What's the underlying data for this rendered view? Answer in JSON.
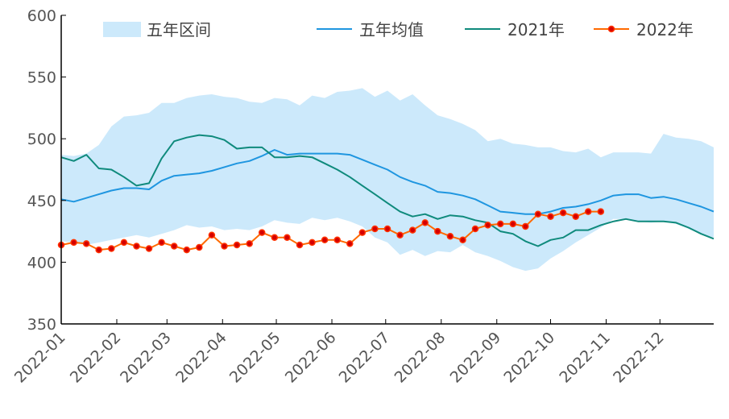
{
  "chart_data": {
    "type": "line",
    "title": "",
    "xlabel": "",
    "ylabel": "",
    "ylim": [
      350,
      600
    ],
    "y_ticks": [
      350,
      400,
      450,
      500,
      550,
      600
    ],
    "x_domain": [
      "2022-01-01",
      "2022-12-31"
    ],
    "x_ticks": [
      "2022-01",
      "2022-02",
      "2022-03",
      "2022-04",
      "2022-05",
      "2022-06",
      "2022-07",
      "2022-08",
      "2022-09",
      "2022-10",
      "2022-11",
      "2022-12"
    ],
    "grid": false,
    "legend": {
      "placement": "top"
    },
    "colors": {
      "band": "#cce9fb",
      "avg": "#1f96e0",
      "y2021": "#0f8a7c",
      "y2022_line": "#ff6a00",
      "y2022_marker_edge": "#ff3300",
      "y2022_marker_fill": "#d40000",
      "axis": "#000000"
    },
    "band": {
      "name": "五年区间",
      "dates": [
        "2022-01-01",
        "2022-01-08",
        "2022-01-15",
        "2022-01-22",
        "2022-01-29",
        "2022-02-05",
        "2022-02-12",
        "2022-02-19",
        "2022-02-26",
        "2022-03-05",
        "2022-03-12",
        "2022-03-19",
        "2022-03-26",
        "2022-04-02",
        "2022-04-09",
        "2022-04-16",
        "2022-04-23",
        "2022-04-30",
        "2022-05-07",
        "2022-05-14",
        "2022-05-21",
        "2022-05-28",
        "2022-06-04",
        "2022-06-11",
        "2022-06-18",
        "2022-06-25",
        "2022-07-02",
        "2022-07-09",
        "2022-07-16",
        "2022-07-23",
        "2022-07-30",
        "2022-08-06",
        "2022-08-13",
        "2022-08-20",
        "2022-08-27",
        "2022-09-03",
        "2022-09-10",
        "2022-09-17",
        "2022-09-24",
        "2022-10-01",
        "2022-10-08",
        "2022-10-15",
        "2022-10-22",
        "2022-10-29",
        "2022-11-05",
        "2022-11-12",
        "2022-11-19",
        "2022-11-26",
        "2022-12-03",
        "2022-12-10",
        "2022-12-17",
        "2022-12-24",
        "2022-12-31"
      ],
      "upper": [
        487,
        486,
        488,
        495,
        510,
        518,
        519,
        521,
        529,
        529,
        533,
        535,
        536,
        534,
        533,
        530,
        529,
        533,
        532,
        527,
        535,
        533,
        538,
        539,
        541,
        534,
        539,
        531,
        536,
        527,
        519,
        516,
        512,
        507,
        498,
        500,
        496,
        495,
        493,
        493,
        490,
        489,
        492,
        485,
        489,
        489,
        489,
        488,
        504,
        501,
        500,
        498,
        493
      ],
      "lower": [
        417,
        416,
        414,
        416,
        418,
        420,
        422,
        420,
        423,
        426,
        430,
        428,
        429,
        426,
        427,
        426,
        429,
        434,
        432,
        431,
        436,
        434,
        436,
        433,
        429,
        420,
        416,
        406,
        410,
        405,
        409,
        408,
        414,
        408,
        405,
        401,
        396,
        393,
        395,
        403,
        409,
        416,
        422,
        428,
        435,
        435,
        433,
        432,
        433,
        431,
        427,
        423,
        420
      ]
    },
    "series": [
      {
        "name": "五年均值",
        "dates": [
          "2022-01-01",
          "2022-01-08",
          "2022-01-15",
          "2022-01-22",
          "2022-01-29",
          "2022-02-05",
          "2022-02-12",
          "2022-02-19",
          "2022-02-26",
          "2022-03-05",
          "2022-03-12",
          "2022-03-19",
          "2022-03-26",
          "2022-04-02",
          "2022-04-09",
          "2022-04-16",
          "2022-04-23",
          "2022-04-30",
          "2022-05-07",
          "2022-05-14",
          "2022-05-21",
          "2022-05-28",
          "2022-06-04",
          "2022-06-11",
          "2022-06-18",
          "2022-06-25",
          "2022-07-02",
          "2022-07-09",
          "2022-07-16",
          "2022-07-23",
          "2022-07-30",
          "2022-08-06",
          "2022-08-13",
          "2022-08-20",
          "2022-08-27",
          "2022-09-03",
          "2022-09-10",
          "2022-09-17",
          "2022-09-24",
          "2022-10-01",
          "2022-10-08",
          "2022-10-15",
          "2022-10-22",
          "2022-10-29",
          "2022-11-05",
          "2022-11-12",
          "2022-11-19",
          "2022-11-26",
          "2022-12-03",
          "2022-12-10",
          "2022-12-17",
          "2022-12-24",
          "2022-12-31"
        ],
        "values": [
          451,
          449,
          452,
          455,
          458,
          460,
          460,
          459,
          466,
          470,
          471,
          472,
          474,
          477,
          480,
          482,
          486,
          491,
          487,
          488,
          488,
          488,
          488,
          487,
          483,
          479,
          475,
          469,
          465,
          462,
          457,
          456,
          454,
          451,
          446,
          441,
          440,
          439,
          439,
          441,
          444,
          445,
          447,
          450,
          454,
          455,
          455,
          452,
          453,
          451,
          448,
          445,
          441
        ]
      },
      {
        "name": "2021年",
        "dates": [
          "2022-01-01",
          "2022-01-08",
          "2022-01-15",
          "2022-01-22",
          "2022-01-29",
          "2022-02-05",
          "2022-02-12",
          "2022-02-19",
          "2022-02-26",
          "2022-03-05",
          "2022-03-12",
          "2022-03-19",
          "2022-03-26",
          "2022-04-02",
          "2022-04-09",
          "2022-04-16",
          "2022-04-23",
          "2022-04-30",
          "2022-05-07",
          "2022-05-14",
          "2022-05-21",
          "2022-05-28",
          "2022-06-04",
          "2022-06-11",
          "2022-06-18",
          "2022-06-25",
          "2022-07-02",
          "2022-07-09",
          "2022-07-16",
          "2022-07-23",
          "2022-07-30",
          "2022-08-06",
          "2022-08-13",
          "2022-08-20",
          "2022-08-27",
          "2022-09-03",
          "2022-09-10",
          "2022-09-17",
          "2022-09-24",
          "2022-10-01",
          "2022-10-08",
          "2022-10-15",
          "2022-10-22",
          "2022-10-29",
          "2022-11-05",
          "2022-11-12",
          "2022-11-19",
          "2022-11-26",
          "2022-12-03",
          "2022-12-10",
          "2022-12-17",
          "2022-12-24",
          "2022-12-31"
        ],
        "values": [
          485,
          482,
          487,
          476,
          475,
          469,
          462,
          464,
          484,
          498,
          501,
          503,
          502,
          499,
          492,
          493,
          493,
          485,
          485,
          486,
          485,
          480,
          475,
          469,
          462,
          455,
          448,
          441,
          437,
          439,
          435,
          438,
          437,
          434,
          432,
          425,
          423,
          417,
          413,
          418,
          420,
          426,
          426,
          430,
          433,
          435,
          433,
          433,
          433,
          432,
          428,
          423,
          419
        ]
      },
      {
        "name": "2022年",
        "dates": [
          "2022-01-01",
          "2022-01-08",
          "2022-01-15",
          "2022-01-22",
          "2022-01-29",
          "2022-02-05",
          "2022-02-12",
          "2022-02-19",
          "2022-02-26",
          "2022-03-05",
          "2022-03-12",
          "2022-03-19",
          "2022-03-26",
          "2022-04-02",
          "2022-04-09",
          "2022-04-16",
          "2022-04-23",
          "2022-04-30",
          "2022-05-07",
          "2022-05-14",
          "2022-05-21",
          "2022-05-28",
          "2022-06-04",
          "2022-06-11",
          "2022-06-18",
          "2022-06-25",
          "2022-07-02",
          "2022-07-09",
          "2022-07-16",
          "2022-07-23",
          "2022-07-30",
          "2022-08-06",
          "2022-08-13",
          "2022-08-20",
          "2022-08-27",
          "2022-09-03",
          "2022-09-10",
          "2022-09-17",
          "2022-09-24",
          "2022-10-01",
          "2022-10-08",
          "2022-10-15",
          "2022-10-22",
          "2022-10-29"
        ],
        "values": [
          414,
          416,
          415,
          410,
          411,
          416,
          413,
          411,
          416,
          413,
          410,
          412,
          422,
          413,
          414,
          415,
          424,
          420,
          420,
          414,
          416,
          418,
          418,
          415,
          424,
          427,
          427,
          422,
          426,
          432,
          425,
          421,
          418,
          427,
          430,
          431,
          431,
          429,
          439,
          437,
          440,
          437,
          441,
          441
        ]
      }
    ]
  }
}
